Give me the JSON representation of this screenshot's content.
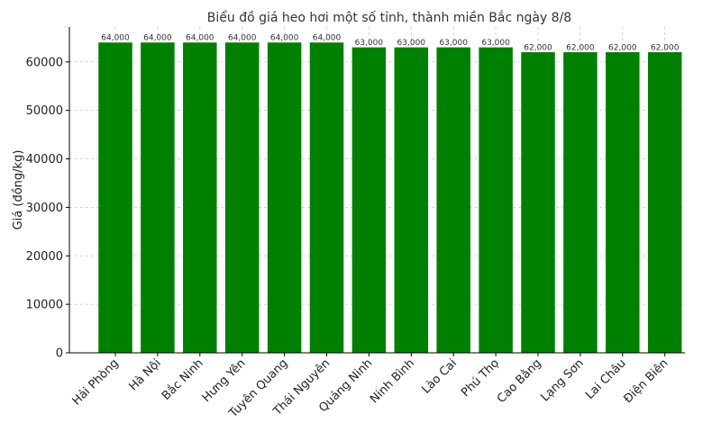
{
  "chart_data": {
    "type": "bar",
    "title": "Biểu đồ giá heo hơi một số tỉnh, thành miền Bắc ngày 8/8",
    "xlabel": "",
    "ylabel": "Giá (đồng/kg)",
    "categories": [
      "Hải Phòng",
      "Hà Nội",
      "Bắc Ninh",
      "Hưng Yên",
      "Tuyên Quang",
      "Thái Nguyên",
      "Quảng Ninh",
      "Ninh Bình",
      "Lào Cai",
      "Phú Thọ",
      "Cao Bằng",
      "Lạng Sơn",
      "Lai Châu",
      "Điện Biên"
    ],
    "values": [
      64000,
      64000,
      64000,
      64000,
      64000,
      64000,
      63000,
      63000,
      63000,
      63000,
      62000,
      62000,
      62000,
      62000
    ],
    "data_labels": [
      "64,000",
      "64,000",
      "64,000",
      "64,000",
      "64,000",
      "64,000",
      "63,000",
      "63,000",
      "63,000",
      "63,000",
      "62,000",
      "62,000",
      "62,000",
      "62,000"
    ],
    "yticks": [
      0,
      10000,
      20000,
      30000,
      40000,
      50000,
      60000
    ],
    "ylim": [
      0,
      67200
    ],
    "grid": true,
    "bar_color": "#008000"
  }
}
